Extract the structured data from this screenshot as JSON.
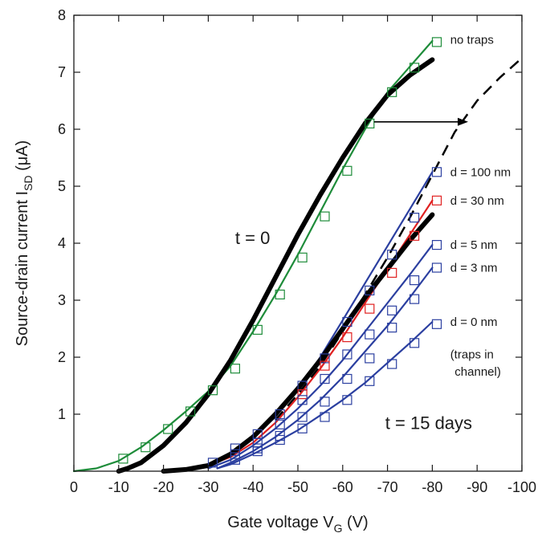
{
  "chart_data": {
    "type": "line",
    "xlabel_main": "Gate voltage V",
    "xlabel_sub": "G",
    "xlabel_unit": " (V)",
    "ylabel_main": "Source-drain current I",
    "ylabel_sub": "SD",
    "ylabel_unit": " (μA)",
    "xlim": [
      0,
      -100
    ],
    "ylim": [
      0,
      8
    ],
    "x_ticks": [
      0,
      -10,
      -20,
      -30,
      -40,
      -50,
      -60,
      -70,
      -80,
      -90,
      -100
    ],
    "y_ticks": [
      1,
      2,
      3,
      4,
      5,
      6,
      7,
      8
    ],
    "x_tick_labels": [
      "0",
      "-10",
      "-20",
      "-30",
      "-40",
      "-50",
      "-60",
      "-70",
      "-80",
      "-90",
      "-100"
    ],
    "y_tick_labels": [
      "1",
      "2",
      "3",
      "4",
      "5",
      "6",
      "7",
      "8"
    ],
    "grid": false,
    "colors": {
      "green": "#1e8c3a",
      "blue": "#2b3fa0",
      "red": "#e02020",
      "black": "#000000"
    },
    "series": [
      {
        "name": "t = 0",
        "color": "#000000",
        "style": "thick",
        "x": [
          -10,
          -12,
          -15,
          -20,
          -25,
          -30,
          -35,
          -40,
          -45,
          -50,
          -55,
          -60,
          -65,
          -70,
          -75,
          -80
        ],
        "y": [
          0.0,
          0.05,
          0.15,
          0.45,
          0.85,
          1.35,
          1.95,
          2.65,
          3.4,
          4.15,
          4.85,
          5.5,
          6.1,
          6.6,
          6.95,
          7.22
        ]
      },
      {
        "name": "no traps",
        "color": "#1e8c3a",
        "style": "line",
        "x": [
          0,
          -5,
          -10,
          -15,
          -20,
          -25,
          -30,
          -35,
          -40,
          -45,
          -50,
          -55,
          -60,
          -65,
          -70,
          -75,
          -80
        ],
        "y": [
          0.0,
          0.05,
          0.18,
          0.42,
          0.72,
          1.05,
          1.4,
          1.85,
          2.45,
          3.1,
          3.8,
          4.55,
          5.3,
          6.0,
          6.65,
          7.1,
          7.55
        ],
        "markers": [
          {
            "x": -11,
            "y": 0.22
          },
          {
            "x": -16,
            "y": 0.42
          },
          {
            "x": -21,
            "y": 0.74
          },
          {
            "x": -26,
            "y": 1.05
          },
          {
            "x": -31,
            "y": 1.42
          },
          {
            "x": -36,
            "y": 1.8
          },
          {
            "x": -41,
            "y": 2.48
          },
          {
            "x": -46,
            "y": 3.1
          },
          {
            "x": -51,
            "y": 3.75
          },
          {
            "x": -56,
            "y": 4.47
          },
          {
            "x": -61,
            "y": 5.27
          },
          {
            "x": -66,
            "y": 6.1
          },
          {
            "x": -71,
            "y": 6.65
          },
          {
            "x": -76,
            "y": 7.08
          },
          {
            "x": -81,
            "y": 7.53
          }
        ]
      },
      {
        "name": "d = 100 nm",
        "color": "#2b3fa0",
        "style": "line",
        "x": [
          -28,
          -35,
          -40,
          -45,
          -50,
          -55,
          -60,
          -65,
          -70,
          -75,
          -80
        ],
        "y": [
          0.05,
          0.3,
          0.6,
          0.95,
          1.45,
          2.0,
          2.65,
          3.3,
          3.95,
          4.6,
          5.25
        ],
        "markers": [
          {
            "x": -31,
            "y": 0.15
          },
          {
            "x": -36,
            "y": 0.4
          },
          {
            "x": -41,
            "y": 0.65
          },
          {
            "x": -46,
            "y": 1.0
          },
          {
            "x": -51,
            "y": 1.5
          },
          {
            "x": -56,
            "y": 1.98
          },
          {
            "x": -61,
            "y": 2.62
          },
          {
            "x": -66,
            "y": 3.17
          },
          {
            "x": -71,
            "y": 3.8
          },
          {
            "x": -76,
            "y": 4.45
          },
          {
            "x": -81,
            "y": 5.25
          }
        ]
      },
      {
        "name": "d = 30 nm",
        "color": "#e02020",
        "style": "line",
        "x": [
          -28,
          -35,
          -40,
          -45,
          -50,
          -55,
          -60,
          -65,
          -70,
          -75,
          -80
        ],
        "y": [
          0.05,
          0.25,
          0.5,
          0.85,
          1.3,
          1.8,
          2.35,
          2.95,
          3.55,
          4.15,
          4.75
        ],
        "markers": [
          {
            "x": -51,
            "y": 1.35
          },
          {
            "x": -56,
            "y": 1.85
          },
          {
            "x": -61,
            "y": 2.35
          },
          {
            "x": -66,
            "y": 2.85
          },
          {
            "x": -71,
            "y": 3.48
          },
          {
            "x": -76,
            "y": 4.13
          },
          {
            "x": -81,
            "y": 4.75
          }
        ]
      },
      {
        "name": "d = 5 nm",
        "color": "#2b3fa0",
        "style": "line",
        "x": [
          -30,
          -35,
          -40,
          -45,
          -50,
          -55,
          -60,
          -65,
          -70,
          -75,
          -80
        ],
        "y": [
          0.05,
          0.2,
          0.45,
          0.75,
          1.1,
          1.5,
          1.95,
          2.45,
          2.95,
          3.45,
          3.97
        ],
        "markers": [
          {
            "x": -36,
            "y": 0.3
          },
          {
            "x": -41,
            "y": 0.5
          },
          {
            "x": -46,
            "y": 0.82
          },
          {
            "x": -51,
            "y": 1.25
          },
          {
            "x": -56,
            "y": 1.62
          },
          {
            "x": -61,
            "y": 2.05
          },
          {
            "x": -66,
            "y": 2.4
          },
          {
            "x": -71,
            "y": 2.82
          },
          {
            "x": -76,
            "y": 3.35
          },
          {
            "x": -81,
            "y": 3.97
          }
        ]
      },
      {
        "name": "d = 3 nm",
        "color": "#2b3fa0",
        "style": "line",
        "x": [
          -32,
          -35,
          -40,
          -45,
          -50,
          -55,
          -60,
          -65,
          -70,
          -75,
          -80
        ],
        "y": [
          0.05,
          0.15,
          0.35,
          0.6,
          0.9,
          1.25,
          1.65,
          2.1,
          2.55,
          3.05,
          3.57
        ],
        "markers": [
          {
            "x": -36,
            "y": 0.2
          },
          {
            "x": -41,
            "y": 0.4
          },
          {
            "x": -46,
            "y": 0.62
          },
          {
            "x": -51,
            "y": 0.95
          },
          {
            "x": -56,
            "y": 1.22
          },
          {
            "x": -61,
            "y": 1.62
          },
          {
            "x": -66,
            "y": 1.98
          },
          {
            "x": -71,
            "y": 2.52
          },
          {
            "x": -76,
            "y": 3.02
          },
          {
            "x": -81,
            "y": 3.57
          }
        ]
      },
      {
        "name": "d = 0 nm",
        "color": "#2b3fa0",
        "style": "line",
        "x": [
          -32,
          -35,
          -40,
          -45,
          -50,
          -55,
          -60,
          -65,
          -70,
          -75,
          -80
        ],
        "y": [
          0.05,
          0.12,
          0.3,
          0.5,
          0.72,
          0.98,
          1.25,
          1.55,
          1.9,
          2.25,
          2.62
        ],
        "markers": [
          {
            "x": -41,
            "y": 0.35
          },
          {
            "x": -46,
            "y": 0.55
          },
          {
            "x": -51,
            "y": 0.75
          },
          {
            "x": -56,
            "y": 0.95
          },
          {
            "x": -61,
            "y": 1.25
          },
          {
            "x": -66,
            "y": 1.58
          },
          {
            "x": -71,
            "y": 1.88
          },
          {
            "x": -76,
            "y": 2.25
          },
          {
            "x": -81,
            "y": 2.58
          }
        ]
      },
      {
        "name": "t = 15 days",
        "color": "#000000",
        "style": "thick",
        "x": [
          -20,
          -25,
          -30,
          -35,
          -40,
          -45,
          -50,
          -55,
          -60,
          -65,
          -70,
          -75,
          -80
        ],
        "y": [
          0.0,
          0.03,
          0.1,
          0.3,
          0.6,
          1.0,
          1.45,
          1.95,
          2.5,
          3.05,
          3.55,
          4.05,
          4.5
        ]
      },
      {
        "name": "shifted no traps",
        "color": "#000000",
        "style": "dashed",
        "x": [
          -45,
          -50,
          -55,
          -60,
          -65,
          -70,
          -75,
          -80,
          -85,
          -90,
          -95,
          -100
        ],
        "y": [
          0.9,
          1.35,
          1.85,
          2.45,
          3.1,
          3.75,
          4.45,
          5.2,
          5.95,
          6.5,
          6.9,
          7.25
        ]
      }
    ],
    "annotations": [
      {
        "text": "no traps",
        "x": -84,
        "y": 7.57
      },
      {
        "text": "d = 100 nm",
        "x": -84,
        "y": 5.25
      },
      {
        "text": "d = 30 nm",
        "x": -84,
        "y": 4.75
      },
      {
        "text": "d = 5 nm",
        "x": -84,
        "y": 3.97
      },
      {
        "text": "d = 3 nm",
        "x": -84,
        "y": 3.57
      },
      {
        "text": "d = 0 nm",
        "x": -84,
        "y": 2.62
      },
      {
        "text": "(traps in",
        "x": -84,
        "y": 2.05
      },
      {
        "text": "channel)",
        "x": -85,
        "y": 1.75
      },
      {
        "text": "t = 0",
        "x": -36,
        "y": 4.1,
        "big": true
      },
      {
        "text": "t = 15 days",
        "x": -69.5,
        "y": 0.85,
        "big": true
      }
    ],
    "arrow": {
      "x_from": -67,
      "x_to": -88,
      "y": 6.13
    }
  }
}
